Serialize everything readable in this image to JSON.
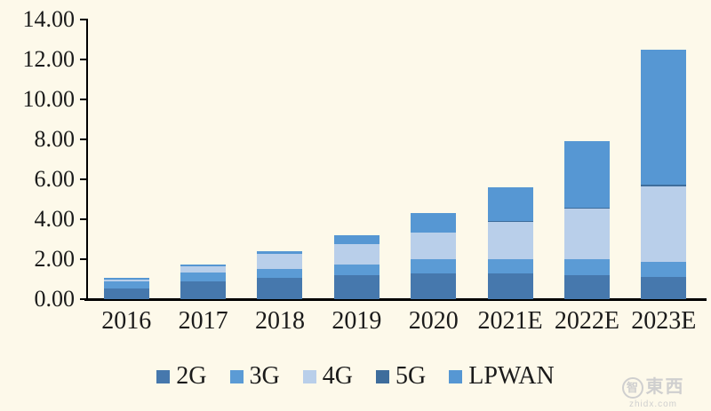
{
  "colors": {
    "background": "#FDF9EA",
    "axis": "#000000",
    "text": "#1a1a1a",
    "watermark": "#cfcfcf"
  },
  "watermark": {
    "brand_first_char": "智",
    "brand_rest": "東西",
    "domain": "zhidx.com"
  },
  "chart_data": {
    "type": "bar",
    "stacked": true,
    "title": "",
    "xlabel": "",
    "ylabel": "",
    "grid": false,
    "legend_position": "bottom",
    "ylim": [
      0,
      14
    ],
    "ytick_step": 2,
    "ytick_labels": [
      "0.00",
      "2.00",
      "4.00",
      "6.00",
      "8.00",
      "10.00",
      "12.00",
      "14.00"
    ],
    "categories": [
      "2016",
      "2017",
      "2018",
      "2019",
      "2020",
      "2021E",
      "2022E",
      "2023E"
    ],
    "series": [
      {
        "name": "2G",
        "color": "#4678AD",
        "values": [
          0.55,
          0.9,
          1.05,
          1.2,
          1.29,
          1.29,
          1.2,
          1.11
        ]
      },
      {
        "name": "3G",
        "color": "#5B9BD5",
        "values": [
          0.35,
          0.45,
          0.45,
          0.53,
          0.71,
          0.71,
          0.8,
          0.76
        ]
      },
      {
        "name": "4G",
        "color": "#B9CFEA",
        "values": [
          0.1,
          0.3,
          0.75,
          1.02,
          1.33,
          1.87,
          2.53,
          3.78
        ]
      },
      {
        "name": "5G",
        "color": "#3E6D9C",
        "values": [
          0.0,
          0.0,
          0.0,
          0.0,
          0.0,
          0.05,
          0.07,
          0.1
        ]
      },
      {
        "name": "LPWAN",
        "color": "#5697D3",
        "values": [
          0.05,
          0.1,
          0.15,
          0.45,
          0.97,
          1.68,
          3.3,
          6.75
        ]
      }
    ],
    "totals": [
      1.05,
      1.75,
      2.4,
      3.2,
      4.3,
      5.6,
      7.9,
      12.5
    ]
  }
}
